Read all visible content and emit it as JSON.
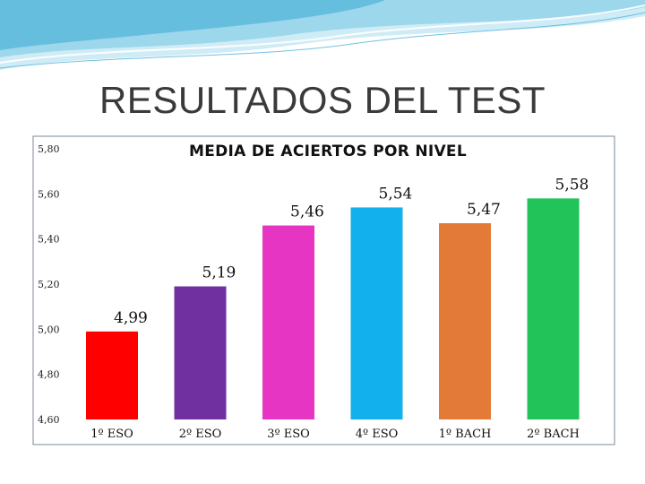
{
  "slide": {
    "title": "RESULTADOS DEL TEST"
  },
  "colors": {
    "accent": "#4fb3d9",
    "accent_light": "#a8dcef",
    "frame": "#7a8a9a"
  },
  "chart_data": {
    "type": "bar",
    "title": "MEDIA DE ACIERTOS POR NIVEL",
    "categories": [
      "1º ESO",
      "2º ESO",
      "3º ESO",
      "4º ESO",
      "1º BACH",
      "2º BACH"
    ],
    "values": [
      4.99,
      5.19,
      5.46,
      5.54,
      5.47,
      5.58
    ],
    "value_labels": [
      "4,99",
      "5,19",
      "5,46",
      "5,54",
      "5,47",
      "5,58"
    ],
    "colors": [
      "#ff0000",
      "#7030a0",
      "#e535c2",
      "#12b0ec",
      "#e47a38",
      "#22c45a"
    ],
    "ylim": [
      4.6,
      5.8
    ],
    "yticks": [
      4.6,
      4.8,
      5.0,
      5.2,
      5.4,
      5.6,
      5.8
    ],
    "ytick_labels": [
      "4,60",
      "4,80",
      "5,00",
      "5,20",
      "5,40",
      "5,60",
      "5,80"
    ],
    "xlabel": "",
    "ylabel": "",
    "grid": false,
    "legend": "none"
  }
}
